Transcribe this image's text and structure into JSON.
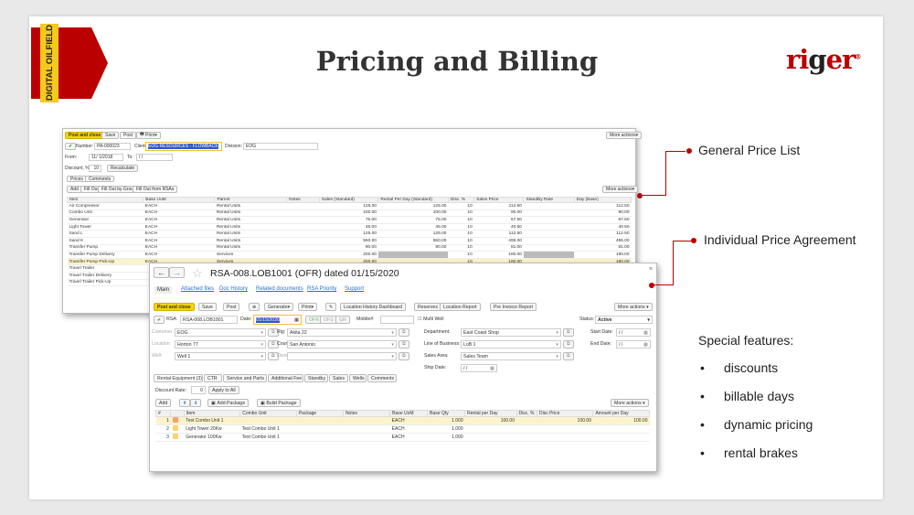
{
  "slide": {
    "ribbon": "DIGITAL OILFIELD",
    "title": "Pricing and Billing",
    "logo": "riger",
    "accent": "#b00000"
  },
  "callouts": {
    "general": "General Price List",
    "individual": "Individual Price Agreement"
  },
  "features": {
    "heading": "Special features:",
    "items": [
      "discounts",
      "billable days",
      "dynamic pricing",
      "rental brakes"
    ]
  },
  "price_list": {
    "toolbar": {
      "post_close": "Post and close",
      "save": "Save",
      "post": "Post",
      "print": "Print",
      "more": "More actions"
    },
    "number_label": "Number:",
    "number": "PA-000023",
    "client_label": "Client:",
    "client": "EOG RESOURCES - FLOWBACK",
    "division_label": "Division:",
    "division": "EOG",
    "from_label": "From:",
    "from": "11/ 1/2018",
    "to_label": "To:",
    "to": "/ /",
    "discount_label": "Discount, %:",
    "discount": "10",
    "recalc": "Recalculate",
    "tabs": [
      "Prices",
      "Comments"
    ],
    "actions": [
      "Add",
      "Fill Out",
      "Fill Out by Group",
      "Fill Out from RSAs"
    ],
    "more": "More actions",
    "columns": [
      "Item",
      "Base UoM",
      "Parent",
      "Notes",
      "Sales (Standard)",
      "Rental Per Day (Standard)",
      "Disc. %",
      "Sales Price",
      "StandBy Rate",
      "Day (Base)"
    ],
    "rows": [
      [
        "Air Compressor",
        "EACH",
        "Rental Units",
        "",
        "125.00",
        "125.00",
        "10",
        "112.50",
        "",
        "112.50"
      ],
      [
        "Combo Unit",
        "EACH",
        "Rental Units",
        "",
        "100.00",
        "100.00",
        "10",
        "90.00",
        "",
        "90.00"
      ],
      [
        "Generator",
        "EACH",
        "Rental Units",
        "",
        "75.00",
        "75.00",
        "10",
        "67.50",
        "",
        "67.50"
      ],
      [
        "Light Tower",
        "EACH",
        "Rental Units",
        "",
        "45.00",
        "45.00",
        "10",
        "40.50",
        "",
        "40.50"
      ],
      [
        "Sand L",
        "EACH",
        "Rental Units",
        "",
        "125.00",
        "125.00",
        "10",
        "112.50",
        "",
        "112.50"
      ],
      [
        "Sand K",
        "EACH",
        "Rental Units",
        "",
        "550.00",
        "550.00",
        "10",
        "495.00",
        "",
        "495.00"
      ],
      [
        "Transfer Pump",
        "EACH",
        "Rental Units",
        "",
        "90.00",
        "90.00",
        "10",
        "81.00",
        "",
        "81.00"
      ],
      [
        "Transfer Pump Delivery",
        "EACH",
        "Services",
        "",
        "200.00",
        "",
        "10",
        "180.00",
        "",
        "180.00"
      ],
      [
        "Transfer Pump Pick-Up",
        "EACH",
        "Services",
        "",
        "200.00",
        "",
        "10",
        "180.00",
        "",
        "180.00"
      ],
      [
        "Travel Trailer",
        "",
        "",
        "",
        "",
        "",
        "",
        "",
        "",
        ""
      ],
      [
        "Travel Trailer Delivery",
        "",
        "",
        "",
        "",
        "",
        "",
        "",
        "",
        ""
      ],
      [
        "Travel Trailer Pick-Up",
        "",
        "",
        "",
        "",
        "",
        "",
        "",
        "",
        ""
      ]
    ]
  },
  "rsa": {
    "title": "RSA-008.LOB1001 (OFR) dated 01/15/2020",
    "nav": [
      "Main",
      "Attached files",
      "Doc History",
      "Related documents",
      "RSA Priority",
      "Support"
    ],
    "toolbar": [
      "Post and close",
      "Save",
      "Post",
      "Generate",
      "Print",
      "Location History Dashboard",
      "Reserves",
      "Location Report",
      "Pre Invoice Report"
    ],
    "more": "More actions",
    "rsa_label": "RSA:",
    "rsa": "RSA-008.LOB1001",
    "date_label": "Date:",
    "date": "01/15/2020",
    "stages": [
      "OFR",
      "OFS",
      "GR"
    ],
    "mobile_label": "Mobile#:",
    "multi_well": "Multi Well",
    "status_label": "Status:",
    "status": "Active",
    "customer_label": "Customer:",
    "customer": "EOG",
    "rig_label": "Rig:",
    "rig": "Akita 22",
    "department_label": "Department:",
    "department": "East Coast Shop",
    "start_label": "Start Date:",
    "start": "/ /",
    "location_label": "Location:",
    "location": "Horton 77",
    "county_label": "County:",
    "county": "San Antonio",
    "lob_label": "Line of Business:",
    "lob": "LoB 1",
    "end_label": "End Date:",
    "end": "/ /",
    "well_label": "Well:",
    "well": "Well 1",
    "division_label": "Division:",
    "division": "",
    "sales_area_label": "Sales Area:",
    "sales_area": "Sales Team",
    "ship_label": "Ship Date:",
    "ship": "/ /",
    "tabs": [
      "Rental Equipment (3)",
      "CTR",
      "Service and Parts",
      "Additional Fee",
      "Standby",
      "Sales",
      "Wells",
      "Comments"
    ],
    "discount_label": "Discount Rate:",
    "discount": "0",
    "apply": "Apply to All",
    "actions": [
      "Add",
      "Add Package",
      "Build Package"
    ],
    "columns": [
      "#",
      "",
      "Item",
      "Combo Unit",
      "Package",
      "Notes",
      "Base UoM",
      "Base Qty",
      "Rental per Day",
      "Disc. %",
      "Disc Price",
      "Amount per Day"
    ],
    "rows": [
      [
        "1",
        "",
        "Test Combo Unit 1",
        "",
        "",
        "",
        "EACH",
        "1.000",
        "100.00",
        "",
        "100.00",
        "100.00"
      ],
      [
        "2",
        "",
        "Light Tower 20Kw",
        "Test Combo Unit 1",
        "",
        "",
        "EACH",
        "1.000",
        "",
        "",
        "",
        ""
      ],
      [
        "3",
        "",
        "Generator 100Kw",
        "Test Combo Unit 1",
        "",
        "",
        "EACH",
        "1.000",
        "",
        "",
        "",
        ""
      ]
    ]
  }
}
